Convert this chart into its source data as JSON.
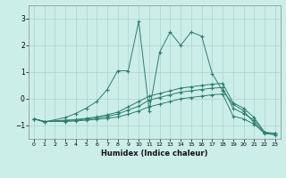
{
  "xlabel": "Humidex (Indice chaleur)",
  "bg_color": "#cceee8",
  "line_color": "#2d7d6e",
  "grid_color": "#aad4cc",
  "xlim": [
    -0.5,
    23.5
  ],
  "ylim": [
    -1.5,
    3.5
  ],
  "yticks": [
    -1,
    0,
    1,
    2,
    3
  ],
  "xticks": [
    0,
    1,
    2,
    3,
    4,
    5,
    6,
    7,
    8,
    9,
    10,
    11,
    12,
    13,
    14,
    15,
    16,
    17,
    18,
    19,
    20,
    21,
    22,
    23
  ],
  "series": [
    {
      "x": [
        0,
        1,
        3,
        4,
        5,
        6,
        7,
        8,
        9,
        10,
        11,
        12,
        13,
        14,
        15,
        16,
        17,
        18,
        19,
        20,
        21,
        22,
        23
      ],
      "y": [
        -0.75,
        -0.85,
        -0.8,
        -0.78,
        -0.73,
        -0.68,
        -0.6,
        -0.5,
        -0.3,
        -0.1,
        0.1,
        0.2,
        0.3,
        0.4,
        0.45,
        0.5,
        0.55,
        0.58,
        -0.15,
        -0.35,
        -0.7,
        -1.25,
        -1.3
      ]
    },
    {
      "x": [
        0,
        1,
        3,
        4,
        5,
        6,
        7,
        8,
        9,
        10,
        11,
        12,
        13,
        14,
        15,
        16,
        17,
        18,
        19,
        20,
        21,
        22,
        23
      ],
      "y": [
        -0.75,
        -0.85,
        -0.82,
        -0.8,
        -0.76,
        -0.72,
        -0.66,
        -0.57,
        -0.42,
        -0.28,
        -0.05,
        0.05,
        0.15,
        0.25,
        0.3,
        0.35,
        0.4,
        0.42,
        -0.35,
        -0.55,
        -0.8,
        -1.27,
        -1.3
      ]
    },
    {
      "x": [
        0,
        1,
        3,
        4,
        5,
        6,
        7,
        8,
        9,
        10,
        11,
        12,
        13,
        14,
        15,
        16,
        17,
        18,
        19,
        20,
        21,
        22,
        23
      ],
      "y": [
        -0.75,
        -0.85,
        -0.85,
        -0.83,
        -0.8,
        -0.77,
        -0.73,
        -0.68,
        -0.58,
        -0.45,
        -0.3,
        -0.2,
        -0.1,
        0.0,
        0.05,
        0.1,
        0.15,
        0.18,
        -0.65,
        -0.75,
        -0.95,
        -1.28,
        -1.3
      ]
    },
    {
      "x": [
        0,
        1,
        3,
        4,
        5,
        6,
        7,
        8,
        9,
        10,
        11,
        12,
        13,
        14,
        15,
        16,
        17,
        18,
        19,
        20,
        21,
        22,
        23
      ],
      "y": [
        -0.75,
        -0.87,
        -0.7,
        -0.55,
        -0.35,
        -0.1,
        0.35,
        1.05,
        1.05,
        2.9,
        -0.45,
        1.75,
        2.5,
        2.0,
        2.5,
        2.35,
        0.95,
        0.3,
        -0.2,
        -0.45,
        -0.9,
        -1.3,
        -1.35
      ]
    }
  ]
}
